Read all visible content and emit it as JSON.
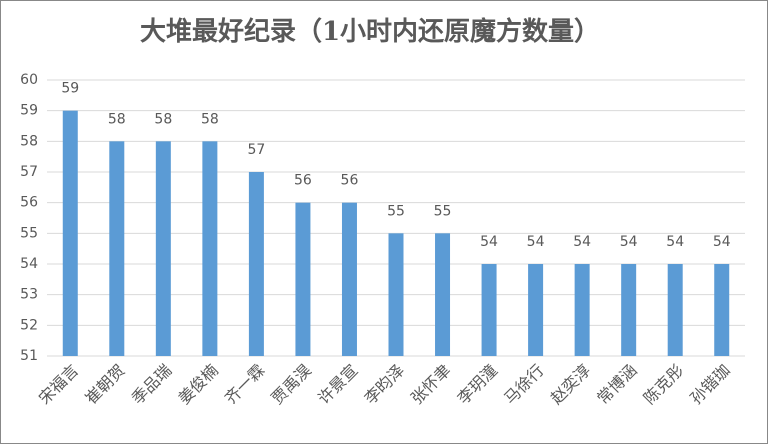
{
  "chart_data": {
    "type": "bar",
    "title": "大堆最好纪录（1小时内还原魔方数量）",
    "categories": [
      "宋福言",
      "崔朝贺",
      "季品瑞",
      "姜俊楠",
      "齐一霖",
      "贾禹淏",
      "许景宣",
      "李昀泽",
      "张怀聿",
      "李玥潼",
      "马徐行",
      "赵奕淳",
      "常博涵",
      "陈克彤",
      "孙锴珈"
    ],
    "values": [
      59,
      58,
      58,
      58,
      57,
      56,
      56,
      55,
      55,
      54,
      54,
      54,
      54,
      54,
      54
    ],
    "color": "#5b9bd5",
    "ylim": [
      51,
      60
    ],
    "yticks": [
      51,
      52,
      53,
      54,
      55,
      56,
      57,
      58,
      59,
      60
    ],
    "grid": true
  }
}
